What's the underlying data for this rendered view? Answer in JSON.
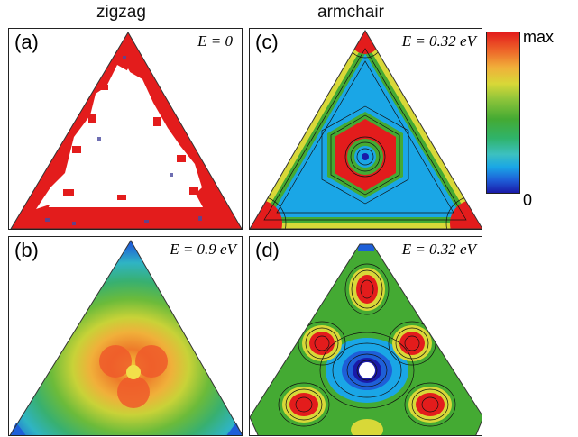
{
  "column_titles": {
    "left": "zigzag",
    "right": "armchair"
  },
  "panels": {
    "a": {
      "label": "(a)",
      "energy": "E = 0"
    },
    "b": {
      "label": "(b)",
      "energy": "E = 0.9 eV"
    },
    "c": {
      "label": "(c)",
      "energy": "E = 0.32 eV"
    },
    "d": {
      "label": "(d)",
      "energy": "E = 0.32 eV"
    }
  },
  "colorbar": {
    "max_label": "max",
    "min_label": "0"
  },
  "colors": {
    "red": "#e31c1c",
    "green": "#44aa33",
    "blue": "#1a1aa8",
    "cyan": "#1aa6e6",
    "yellow": "#d8d838"
  }
}
